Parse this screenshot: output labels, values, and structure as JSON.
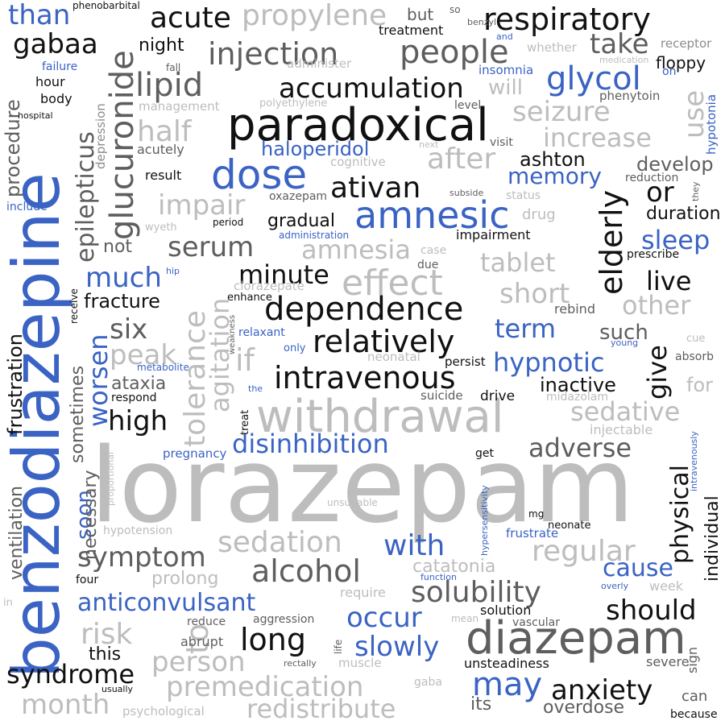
{
  "palette": {
    "blue": "#3a63c4",
    "black": "#111111",
    "dark_gray": "#5e5e5e",
    "gray": "#8c8c8c",
    "light_gray": "#bdbdbd"
  },
  "words": {
    "lorazepam": "lorazepam",
    "benzodiazepine": "benzodiazepine",
    "paradoxical": "paradoxical",
    "withdrawal": "withdrawal",
    "diazepam": "diazepam",
    "dose": "dose",
    "amnesic": "amnesic",
    "dependence": "dependence",
    "intravenous": "intravenous",
    "relatively": "relatively",
    "disinhibition": "disinhibition",
    "glucuronide": "glucuronide",
    "respiratory": "respiratory",
    "injection": "injection",
    "people": "people",
    "accumulation": "accumulation",
    "propylene": "propylene",
    "glycol": "glycol",
    "lipid": "lipid",
    "gabaa": "gabaa",
    "acute": "acute",
    "than": "than",
    "seizure": "seizure",
    "increase": "increase",
    "after": "after",
    "epilepticus": "epilepticus",
    "elderly": "elderly",
    "ativan": "ativan",
    "memory": "memory",
    "haloperidol": "haloperidol",
    "serum": "serum",
    "effect": "effect",
    "amnesia": "amnesia",
    "tablet": "tablet",
    "sleep": "sleep",
    "duration": "duration",
    "minute": "minute",
    "live": "live",
    "give": "give",
    "physical": "physical",
    "sedative": "sedative",
    "tolerance": "tolerance",
    "agitation": "agitation",
    "sedation": "sedation",
    "alcohol": "alcohol",
    "solubility": "solubility",
    "anticonvulsant": "anticonvulsant",
    "symptom": "symptom",
    "syndrome": "syndrome",
    "premedication": "premedication",
    "redistribute": "redistribute",
    "anxiety": "anxiety",
    "may": "may",
    "long": "long",
    "person": "person",
    "risk": "risk",
    "regular": "regular",
    "adverse": "adverse",
    "with": "with",
    "cause": "cause",
    "should": "should",
    "occur": "occur",
    "slowly": "slowly",
    "hypnotic": "hypnotic",
    "term": "term",
    "worsen": "worsen",
    "high": "high",
    "much": "much",
    "six": "six",
    "peak": "peak",
    "half": "half",
    "impair": "impair",
    "use": "use",
    "take": "take",
    "or": "or",
    "develop": "develop",
    "ashton": "ashton",
    "short": "short",
    "other": "other",
    "such": "such",
    "inactive": "inactive",
    "month": "month",
    "frustration": "frustration",
    "ventilation": "ventilation",
    "procedure": "procedure",
    "soon": "soon",
    "necessary": "necessary",
    "sometimes": "sometimes",
    "catatonia": "catatonia",
    "prolong": "prolong",
    "this": "this",
    "fracture": "fracture",
    "not": "not",
    "ataxia": "ataxia",
    "if": "if",
    "to": "to",
    "will": "will",
    "night": "night",
    "floppy": "floppy",
    "hypotonia": "hypotonia",
    "phenytoin": "phenytoin",
    "insomnia": "insomnia",
    "whether": "whether",
    "receptor": "receptor",
    "treatment": "treatment",
    "but": "but",
    "so": "so",
    "benzyl": "benzyl",
    "and": "and",
    "phenobarbital": "phenobarbital",
    "failure": "failure",
    "hour": "hour",
    "body": "body",
    "hospital": "hospital",
    "management": "management",
    "polyethylene": "polyethylene",
    "administer": "administer",
    "fall": "fall",
    "medication": "medication",
    "on": "on",
    "level": "level",
    "depression": "depression",
    "acutely": "acutely",
    "result": "result",
    "cognitive": "cognitive",
    "next": "next",
    "visit": "visit",
    "oxazepam": "oxazepam",
    "subside": "subside",
    "status": "status",
    "reduction": "reduction",
    "they": "they",
    "include": "include",
    "gradual": "gradual",
    "period": "period",
    "wyeth": "wyeth",
    "administration": "administration",
    "impairment": "impairment",
    "drug": "drug",
    "prescribe": "prescribe",
    "case": "case",
    "due": "due",
    "hip": "hip",
    "clorazepate": "clorazepate",
    "enhance": "enhance",
    "rebind": "rebind",
    "receive": "receive",
    "weakness": "weakness",
    "relaxant": "relaxant",
    "only": "only",
    "neonatal": "neonatal",
    "persist": "persist",
    "young": "young",
    "cue": "cue",
    "absorb": "absorb",
    "metabolite": "metabolite",
    "respond": "respond",
    "the": "the",
    "suicide": "suicide",
    "drive": "drive",
    "midazolam": "midazolam",
    "for": "for",
    "injectable": "injectable",
    "treat": "treat",
    "intravenously": "intravenously",
    "pregnancy": "pregnancy",
    "get": "get",
    "proportional": "proportional",
    "individual": "individual",
    "unsuitable": "unsuitable",
    "hypersensitivity": "hypersensitivity",
    "neonate": "neonate",
    "mg": "mg",
    "hypotension": "hypotension",
    "frustrate": "frustrate",
    "four": "four",
    "function": "function",
    "overly": "overly",
    "week": "week",
    "require": "require",
    "in": "in",
    "reduce": "reduce",
    "aggression": "aggression",
    "mean": "mean",
    "solution": "solution",
    "vascular": "vascular",
    "abrupt": "abrupt",
    "life": "life",
    "sign": "sign",
    "rectally": "rectally",
    "muscle": "muscle",
    "unsteadiness": "unsteadiness",
    "severe": "severe",
    "usually": "usually",
    "gaba": "gaba",
    "can": "can",
    "psychological": "psychological",
    "its": "its",
    "overdose": "overdose",
    "because": "because"
  }
}
